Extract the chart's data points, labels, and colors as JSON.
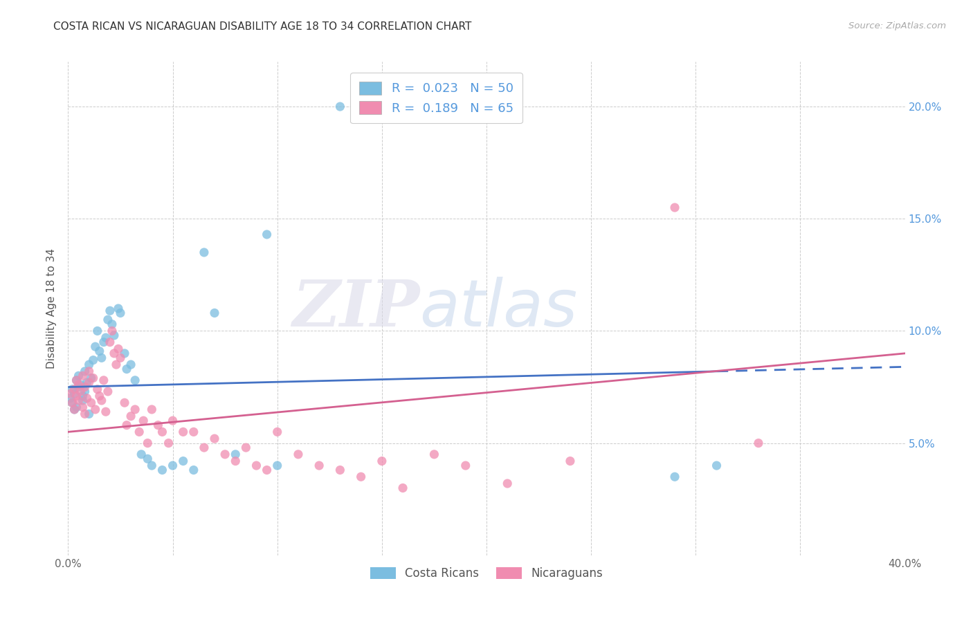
{
  "title": "COSTA RICAN VS NICARAGUAN DISABILITY AGE 18 TO 34 CORRELATION CHART",
  "source": "Source: ZipAtlas.com",
  "ylabel": "Disability Age 18 to 34",
  "xlim": [
    0.0,
    0.4
  ],
  "ylim": [
    0.0,
    0.22
  ],
  "xticks": [
    0.0,
    0.05,
    0.1,
    0.15,
    0.2,
    0.25,
    0.3,
    0.35,
    0.4
  ],
  "yticks": [
    0.0,
    0.05,
    0.1,
    0.15,
    0.2
  ],
  "color_cr": "#7bbde0",
  "color_nic": "#f08cb0",
  "color_line_cr": "#4472c4",
  "color_line_nic": "#d46090",
  "watermark_zip": "ZIP",
  "watermark_atlas": "atlas",
  "cr_line_start_x": 0.0,
  "cr_line_start_y": 0.075,
  "cr_line_end_solid_x": 0.31,
  "cr_line_end_solid_y": 0.082,
  "cr_line_end_dash_x": 0.4,
  "cr_line_end_dash_y": 0.084,
  "nic_line_start_x": 0.0,
  "nic_line_start_y": 0.055,
  "nic_line_end_x": 0.4,
  "nic_line_end_y": 0.09,
  "costa_ricans_x": [
    0.001,
    0.002,
    0.002,
    0.003,
    0.003,
    0.004,
    0.004,
    0.005,
    0.005,
    0.006,
    0.007,
    0.007,
    0.008,
    0.008,
    0.009,
    0.01,
    0.01,
    0.011,
    0.012,
    0.013,
    0.014,
    0.015,
    0.016,
    0.017,
    0.018,
    0.019,
    0.02,
    0.021,
    0.022,
    0.024,
    0.025,
    0.027,
    0.028,
    0.03,
    0.032,
    0.035,
    0.038,
    0.04,
    0.045,
    0.05,
    0.055,
    0.06,
    0.065,
    0.07,
    0.08,
    0.095,
    0.1,
    0.13,
    0.29,
    0.31
  ],
  "costa_ricans_y": [
    0.07,
    0.068,
    0.074,
    0.072,
    0.065,
    0.078,
    0.066,
    0.075,
    0.08,
    0.076,
    0.071,
    0.069,
    0.082,
    0.073,
    0.077,
    0.085,
    0.063,
    0.079,
    0.087,
    0.093,
    0.1,
    0.091,
    0.088,
    0.095,
    0.097,
    0.105,
    0.109,
    0.103,
    0.098,
    0.11,
    0.108,
    0.09,
    0.083,
    0.085,
    0.078,
    0.045,
    0.043,
    0.04,
    0.038,
    0.04,
    0.042,
    0.038,
    0.135,
    0.108,
    0.045,
    0.143,
    0.04,
    0.2,
    0.035,
    0.04
  ],
  "nicaraguans_x": [
    0.001,
    0.002,
    0.003,
    0.003,
    0.004,
    0.004,
    0.005,
    0.005,
    0.006,
    0.007,
    0.007,
    0.008,
    0.008,
    0.009,
    0.01,
    0.01,
    0.011,
    0.012,
    0.013,
    0.014,
    0.015,
    0.016,
    0.017,
    0.018,
    0.019,
    0.02,
    0.021,
    0.022,
    0.023,
    0.024,
    0.025,
    0.027,
    0.028,
    0.03,
    0.032,
    0.034,
    0.036,
    0.038,
    0.04,
    0.043,
    0.045,
    0.048,
    0.05,
    0.055,
    0.06,
    0.065,
    0.07,
    0.075,
    0.08,
    0.085,
    0.09,
    0.095,
    0.1,
    0.11,
    0.12,
    0.13,
    0.14,
    0.15,
    0.16,
    0.175,
    0.19,
    0.21,
    0.24,
    0.29,
    0.33
  ],
  "nicaraguans_y": [
    0.072,
    0.068,
    0.074,
    0.065,
    0.071,
    0.078,
    0.069,
    0.076,
    0.073,
    0.08,
    0.066,
    0.075,
    0.063,
    0.07,
    0.077,
    0.082,
    0.068,
    0.079,
    0.065,
    0.074,
    0.071,
    0.069,
    0.078,
    0.064,
    0.073,
    0.095,
    0.1,
    0.09,
    0.085,
    0.092,
    0.088,
    0.068,
    0.058,
    0.062,
    0.065,
    0.055,
    0.06,
    0.05,
    0.065,
    0.058,
    0.055,
    0.05,
    0.06,
    0.055,
    0.055,
    0.048,
    0.052,
    0.045,
    0.042,
    0.048,
    0.04,
    0.038,
    0.055,
    0.045,
    0.04,
    0.038,
    0.035,
    0.042,
    0.03,
    0.045,
    0.04,
    0.032,
    0.042,
    0.155,
    0.05
  ]
}
